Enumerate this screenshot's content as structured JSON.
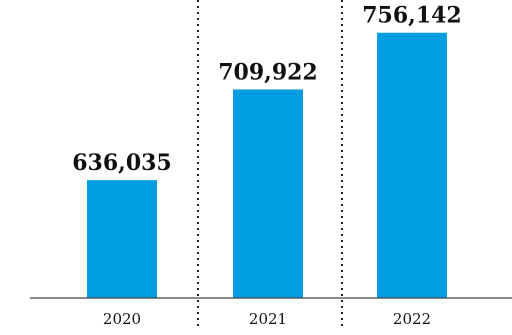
{
  "chart_data": {
    "type": "bar",
    "categories": [
      "2020",
      "2021",
      "2022"
    ],
    "values": [
      636035,
      709922,
      756142
    ],
    "value_labels": [
      "636,035",
      "709,922",
      "756,142"
    ],
    "title": "",
    "xlabel": "",
    "ylabel": "",
    "ylim": [
      540000,
      760000
    ],
    "grid": false,
    "bar_color": "#009ee0",
    "separators": "dotted"
  }
}
